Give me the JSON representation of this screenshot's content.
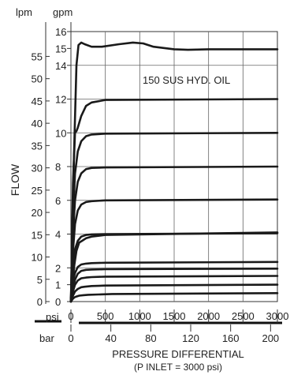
{
  "chart_data": {
    "type": "line",
    "title": "",
    "annotation": "150 SUS HYD. OIL",
    "ylabel": "FLOW",
    "y_units": {
      "lpm": "lpm",
      "gpm": "gpm"
    },
    "x_units": {
      "psi": "psi",
      "bar": "bar"
    },
    "xlabel": "PRESSURE DIFFERENTIAL",
    "xlabel_sub": "(P INLET = 3000 psi)",
    "x_psi_ticks": [
      "0",
      "500",
      "1000",
      "1500",
      "2000",
      "2500",
      "3000"
    ],
    "x_bar_ticks": [
      "0",
      "40",
      "80",
      "120",
      "160",
      "200"
    ],
    "x_bar_values": [
      0,
      40,
      80,
      120,
      160,
      200
    ],
    "y_lpm_ticks": [
      "0",
      "5",
      "10",
      "15",
      "20",
      "25",
      "30",
      "35",
      "40",
      "45",
      "50",
      "55"
    ],
    "y_gpm_ticks": [
      "0",
      "1",
      "2",
      "4",
      "6",
      "8",
      "10",
      "12",
      "14",
      "15",
      "16"
    ],
    "y_gpm_values": [
      0,
      1,
      2,
      4,
      6,
      8,
      10,
      12,
      14,
      15,
      16
    ],
    "xlim_psi": [
      0,
      3000
    ],
    "ylim_gpm": [
      0,
      16
    ],
    "grid": true,
    "series": [
      {
        "x": [
          0,
          25,
          50,
          80,
          120,
          160,
          220,
          300,
          500,
          3000
        ],
        "y": [
          0,
          1.2,
          2.2,
          3.0,
          3.5,
          3.6,
          3.75,
          3.85,
          3.95,
          4.1
        ]
      },
      {
        "x": [
          0,
          25,
          50,
          80,
          120,
          180,
          250,
          400,
          600,
          3000
        ],
        "y": [
          0,
          0.15,
          0.25,
          0.3,
          0.35,
          0.38,
          0.4,
          0.42,
          0.45,
          0.5
        ]
      },
      {
        "x": [
          0,
          30,
          60,
          100,
          150,
          200,
          300,
          500,
          3000
        ],
        "y": [
          0,
          0.35,
          0.6,
          0.75,
          0.85,
          0.88,
          0.92,
          0.95,
          1.0
        ]
      },
      {
        "x": [
          0,
          30,
          60,
          100,
          150,
          220,
          300,
          500,
          3000
        ],
        "y": [
          0,
          0.6,
          1.0,
          1.25,
          1.38,
          1.42,
          1.45,
          1.48,
          1.52
        ]
      },
      {
        "x": [
          0,
          30,
          60,
          100,
          150,
          220,
          300,
          500,
          3000
        ],
        "y": [
          0,
          0.8,
          1.3,
          1.65,
          1.82,
          1.88,
          1.9,
          1.92,
          1.95
        ]
      },
      {
        "x": [
          0,
          30,
          60,
          100,
          150,
          220,
          300,
          500,
          3000
        ],
        "y": [
          0.2,
          1.2,
          1.7,
          2.05,
          2.2,
          2.25,
          2.28,
          2.3,
          2.35
        ]
      },
      {
        "x": [
          0,
          30,
          60,
          100,
          150,
          220,
          300,
          500,
          3000
        ],
        "y": [
          0,
          2.0,
          3.1,
          3.6,
          3.85,
          3.95,
          3.98,
          4.0,
          4.05
        ]
      },
      {
        "x": [
          0,
          30,
          60,
          100,
          150,
          220,
          300,
          500,
          3000
        ],
        "y": [
          0,
          3.0,
          4.6,
          5.4,
          5.75,
          5.9,
          5.95,
          6.0,
          6.05
        ]
      },
      {
        "x": [
          0,
          30,
          60,
          100,
          150,
          220,
          300,
          500,
          3000
        ],
        "y": [
          0,
          4.0,
          6.0,
          7.1,
          7.6,
          7.85,
          7.92,
          7.95,
          8.0
        ]
      },
      {
        "x": [
          0,
          30,
          60,
          100,
          150,
          220,
          300,
          500,
          3000
        ],
        "y": [
          0,
          5.0,
          7.6,
          8.9,
          9.5,
          9.8,
          9.9,
          9.95,
          10.0
        ]
      },
      {
        "x": [
          0,
          30,
          60,
          80,
          100,
          150,
          220,
          300,
          500,
          3000
        ],
        "y": [
          0,
          7.0,
          10.0,
          10.1,
          10.3,
          11.0,
          11.6,
          11.8,
          11.95,
          12.0
        ]
      },
      {
        "x": [
          0,
          40,
          80,
          110,
          150,
          200,
          300,
          450,
          700,
          900,
          1050,
          1200,
          1500,
          1700,
          2000,
          2500,
          3000
        ],
        "y": [
          0,
          8.0,
          14.0,
          15.2,
          15.35,
          15.25,
          15.1,
          15.1,
          15.25,
          15.35,
          15.3,
          15.1,
          14.95,
          14.92,
          14.95,
          14.95,
          14.95
        ]
      }
    ]
  }
}
